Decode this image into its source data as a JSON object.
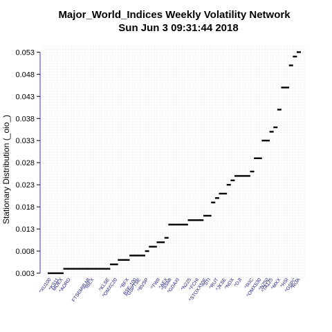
{
  "chart_data": {
    "type": "scatter",
    "title": "Major_World_Indices  Weekly Volatility Network",
    "subtitle": "Sun Jun  3 09:31:44 2018",
    "xlabel": "",
    "ylabel": "Stationary Distribution (_oio_)",
    "ylim": [
      0.003,
      0.054
    ],
    "yticks": [
      "0.003",
      "0.008",
      "0.013",
      "0.018",
      "0.023",
      "0.028",
      "0.033",
      "0.038",
      "0.043",
      "0.048",
      "0.053"
    ],
    "grid": true,
    "point_color": "#000000",
    "axis_color": "#3333cc",
    "label_color": "#1a1a80",
    "categories": [
      "^XU100",
      "",
      "^KS11",
      "MOEX",
      "",
      "^AORD",
      "",
      "",
      "",
      "",
      "FTSEMIB.MI",
      "^IBEX",
      "",
      "",
      "",
      "^KLSE",
      "",
      "^OMXC20",
      "",
      "",
      "^BFX",
      "",
      "BSE-100",
      "^GSPTSE",
      "",
      "^BVSP",
      "",
      "",
      "^TWII",
      "",
      "^AEX",
      "^SSMI",
      "",
      "^GDAXI",
      "",
      "",
      "^N225",
      "",
      "^FCHI",
      "",
      "^STOXX50E",
      "^STI",
      "",
      "^RUT",
      "",
      "^JKSE",
      "",
      "^NDX",
      "",
      "^DJI",
      "",
      "",
      "^IXIC",
      "",
      "^OMXS30",
      "",
      "^NZ50",
      "^TA125",
      "",
      "^MXX",
      "",
      "^HSI",
      "",
      "^GSPC",
      "^RUA"
    ],
    "values": [
      0.003,
      0.003,
      0.003,
      0.003,
      0.004,
      0.004,
      0.004,
      0.004,
      0.004,
      0.004,
      0.004,
      0.004,
      0.004,
      0.004,
      0.004,
      0.004,
      0.005,
      0.005,
      0.006,
      0.006,
      0.006,
      0.007,
      0.007,
      0.007,
      0.007,
      0.008,
      0.009,
      0.009,
      0.01,
      0.01,
      0.011,
      0.014,
      0.014,
      0.014,
      0.014,
      0.014,
      0.015,
      0.015,
      0.015,
      0.015,
      0.016,
      0.016,
      0.019,
      0.02,
      0.021,
      0.021,
      0.023,
      0.024,
      0.025,
      0.025,
      0.025,
      0.025,
      0.026,
      0.029,
      0.029,
      0.033,
      0.033,
      0.035,
      0.036,
      0.04,
      0.045,
      0.045,
      0.05,
      0.052,
      0.053
    ]
  }
}
